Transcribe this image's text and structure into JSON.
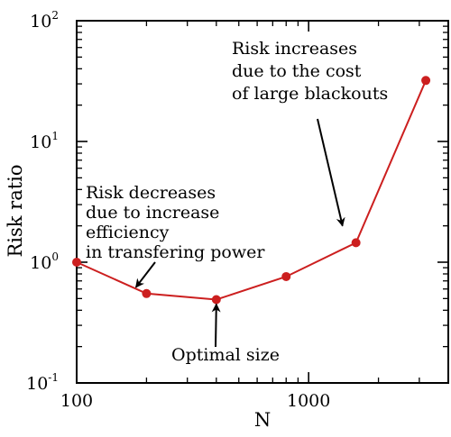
{
  "chart_data": {
    "type": "line",
    "x_scale": "log",
    "y_scale": "log",
    "xlabel": "N",
    "ylabel": "Risk ratio",
    "xlim": [
      100,
      4000
    ],
    "ylim": [
      0.1,
      100
    ],
    "grid": false,
    "legend": "none",
    "x_ticks": [
      {
        "value": 100,
        "label": "100"
      },
      {
        "value": 1000,
        "label": "1000"
      }
    ],
    "y_ticks": [
      {
        "value": 0.1,
        "base": "10",
        "exp": "-1"
      },
      {
        "value": 1,
        "base": "10",
        "exp": "0"
      },
      {
        "value": 10,
        "base": "10",
        "exp": "1"
      },
      {
        "value": 100,
        "base": "10",
        "exp": "2"
      }
    ],
    "series": [
      {
        "color": "#cc1f1f",
        "x": [
          100,
          200,
          400,
          800,
          1600,
          3200
        ],
        "y": [
          1.0,
          0.55,
          0.49,
          0.76,
          1.45,
          32
        ]
      }
    ],
    "annotations": [
      {
        "lines": [
          "Risk increases",
          "due to the cost",
          "of large blackouts"
        ],
        "arrow_to": {
          "x": 1400,
          "y": 2.0
        }
      },
      {
        "lines": [
          "Risk decreases",
          "due to increase",
          "efficiency",
          "in transfering power"
        ],
        "arrow_to": {
          "x": 180,
          "y": 0.62
        }
      },
      {
        "lines": [
          "Optimal size"
        ],
        "arrow_to": {
          "x": 400,
          "y": 0.45
        }
      }
    ]
  }
}
